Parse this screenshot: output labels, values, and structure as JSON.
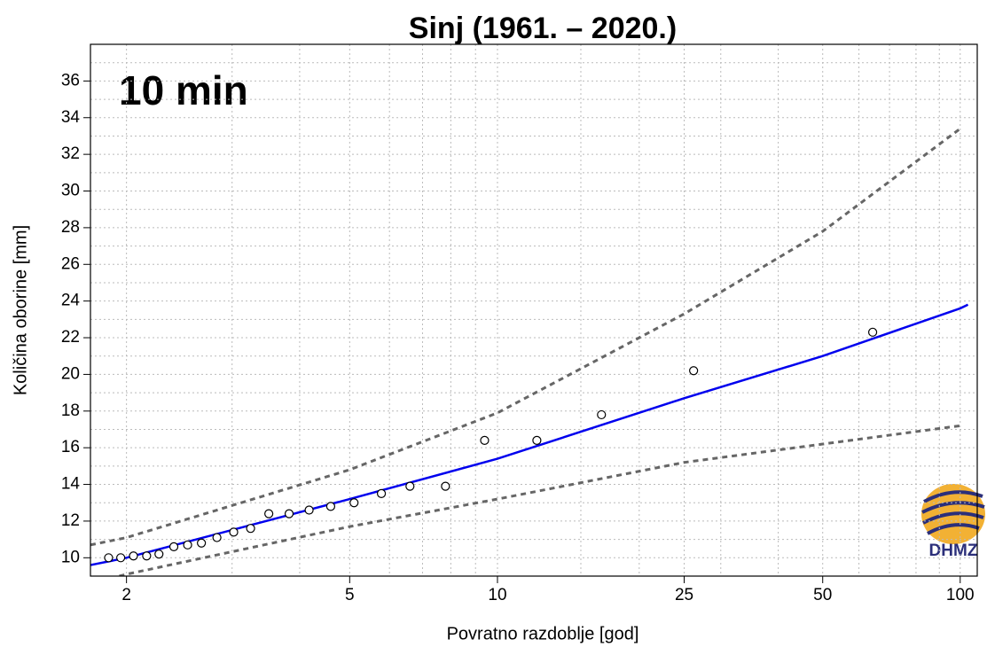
{
  "chart_data": {
    "type": "scatter",
    "title": "Sinj (1961. – 2020.)",
    "annotation": "10 min",
    "x_label": "Povratno razdoblje [god]",
    "y_label": "Količina oborine [mm]",
    "logo_text": "DHMZ",
    "xscale": "gumbel",
    "xlim": [
      1.77,
      109
    ],
    "ylim": [
      9,
      38
    ],
    "xticks": [
      2,
      5,
      10,
      25,
      50,
      100
    ],
    "yticks": [
      10,
      12,
      14,
      16,
      18,
      20,
      22,
      24,
      26,
      28,
      30,
      32,
      34,
      36
    ],
    "minor_xticks": [
      3,
      4,
      6,
      7,
      8,
      9,
      15,
      20,
      30,
      40,
      60,
      70,
      80,
      90
    ],
    "minor_yticks": [
      9,
      11,
      13,
      15,
      17,
      19,
      21,
      23,
      25,
      27,
      29,
      31,
      33,
      35,
      37
    ],
    "grid": true,
    "points": {
      "color": "#000000",
      "x": [
        1.88,
        1.96,
        2.05,
        2.15,
        2.25,
        2.38,
        2.51,
        2.65,
        2.82,
        3.02,
        3.24,
        3.5,
        3.82,
        4.17,
        4.59,
        5.1,
        5.78,
        6.6,
        7.8,
        9.4,
        12.1,
        16.6,
        26.2,
        64.3
      ],
      "values": [
        10.0,
        10.0,
        10.1,
        10.1,
        10.2,
        10.6,
        10.7,
        10.8,
        11.1,
        11.4,
        11.6,
        12.4,
        12.4,
        12.6,
        12.8,
        13.0,
        13.5,
        13.9,
        13.9,
        16.4,
        16.4,
        17.8,
        20.2,
        22.3
      ]
    },
    "lines": [
      {
        "color": "#0000ee",
        "dash": false,
        "x": [
          1.77,
          2,
          5,
          10,
          25,
          50,
          100,
          104
        ],
        "values": [
          9.6,
          10.0,
          13.2,
          15.4,
          18.7,
          21.0,
          23.6,
          23.8
        ]
      },
      {
        "color": "#666666",
        "dash": true,
        "x": [
          1.77,
          2,
          5,
          10,
          25,
          50,
          100
        ],
        "values": [
          10.7,
          11.1,
          14.8,
          17.9,
          23.3,
          27.8,
          33.4
        ]
      },
      {
        "color": "#666666",
        "dash": true,
        "x": [
          1.95,
          2,
          5,
          10,
          25,
          50,
          100
        ],
        "values": [
          9.0,
          9.1,
          11.7,
          13.2,
          15.2,
          16.2,
          17.2
        ]
      }
    ]
  }
}
